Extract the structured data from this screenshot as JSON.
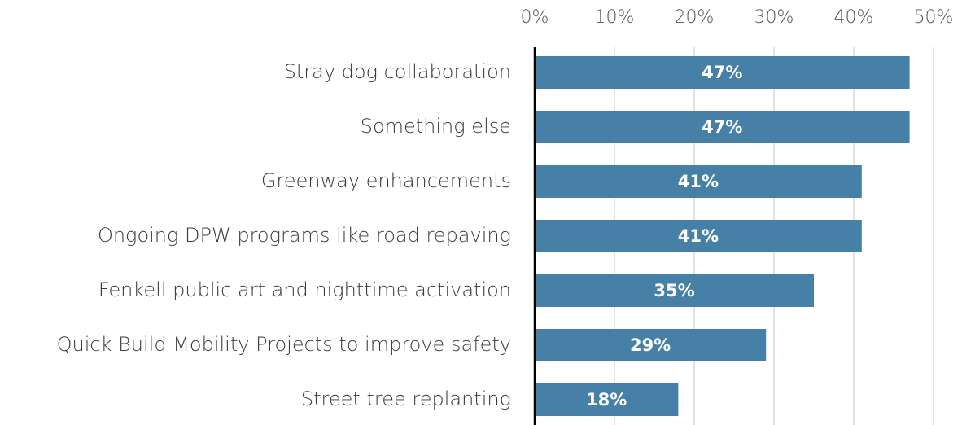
{
  "chart_data": {
    "type": "bar",
    "orientation": "horizontal",
    "categories": [
      "Stray dog collaboration",
      "Something else",
      "Greenway enhancements",
      "Ongoing DPW programs like road repaving",
      "Fenkell public art and nighttime activation",
      "Quick Build Mobility Projects to improve safety",
      "Street tree replanting"
    ],
    "values": [
      47,
      47,
      41,
      41,
      35,
      29,
      18
    ],
    "value_labels": [
      "47%",
      "47%",
      "41%",
      "41%",
      "35%",
      "29%",
      "18%"
    ],
    "color": "#4680a6",
    "xlim": [
      0,
      50
    ],
    "xticks": [
      {
        "value": 0,
        "label": "0%"
      },
      {
        "value": 10,
        "label": "10%"
      },
      {
        "value": 20,
        "label": "20%"
      },
      {
        "value": 30,
        "label": "30%"
      },
      {
        "value": 40,
        "label": "40%"
      },
      {
        "value": 50,
        "label": "50%"
      }
    ],
    "grid": true
  }
}
